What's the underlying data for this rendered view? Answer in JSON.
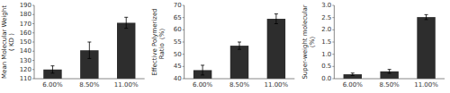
{
  "chart_data": [
    {
      "type": "bar",
      "categories": [
        "6.00%",
        "8.50%",
        "11.00%"
      ],
      "ylabel": "Mean Molecular Weight\n( KD )",
      "values": [
        120,
        141,
        171
      ],
      "errors": [
        4,
        9,
        6
      ],
      "color": "#2d2d2d",
      "ylim": [
        110,
        190
      ],
      "yticks": [
        110,
        120,
        130,
        140,
        150,
        160,
        170,
        180,
        190
      ]
    },
    {
      "type": "bar",
      "categories": [
        "6.00%",
        "8.50%",
        "11.00%"
      ],
      "ylabel": "Effective Polymerized\nRatio（%）",
      "values": [
        43.5,
        53.5,
        64.5
      ],
      "errors": [
        2,
        1.5,
        2
      ],
      "color": "#2d2d2d",
      "ylim": [
        40,
        70
      ],
      "yticks": [
        40,
        45,
        50,
        55,
        60,
        65,
        70
      ]
    },
    {
      "type": "bar",
      "categories": [
        "6.00%",
        "8.50%",
        "11.00%"
      ],
      "ylabel": "Super-weight molecular\n（%）",
      "values": [
        0.18,
        0.3,
        2.52
      ],
      "errors": [
        0.05,
        0.08,
        0.1
      ],
      "color": "#2d2d2d",
      "ylim": [
        0,
        3
      ],
      "yticks": [
        {
          "value": 0,
          "label": "0.0"
        },
        0.5,
        {
          "value": 1.0,
          "label": "1.0"
        },
        1.5,
        {
          "value": 2.0,
          "label": "2.0"
        },
        2.5,
        {
          "value": 3.0,
          "label": "3.0"
        }
      ]
    }
  ]
}
